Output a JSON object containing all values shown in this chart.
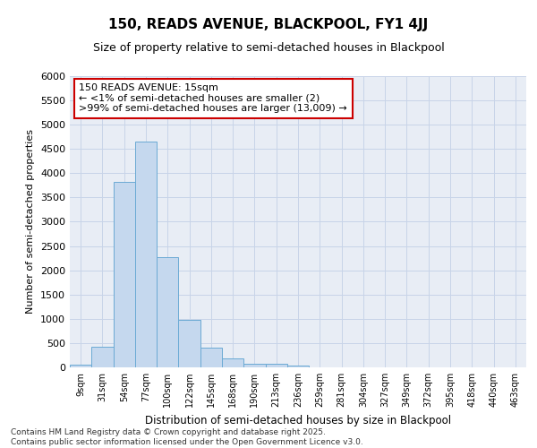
{
  "title1": "150, READS AVENUE, BLACKPOOL, FY1 4JJ",
  "title2": "Size of property relative to semi-detached houses in Blackpool",
  "xlabel": "Distribution of semi-detached houses by size in Blackpool",
  "ylabel": "Number of semi-detached properties",
  "categories": [
    "9sqm",
    "31sqm",
    "54sqm",
    "77sqm",
    "100sqm",
    "122sqm",
    "145sqm",
    "168sqm",
    "190sqm",
    "213sqm",
    "236sqm",
    "259sqm",
    "281sqm",
    "304sqm",
    "327sqm",
    "349sqm",
    "372sqm",
    "395sqm",
    "418sqm",
    "440sqm",
    "463sqm"
  ],
  "values": [
    50,
    430,
    3820,
    4650,
    2280,
    980,
    400,
    190,
    65,
    65,
    35,
    0,
    0,
    0,
    0,
    0,
    0,
    0,
    0,
    0,
    0
  ],
  "bar_color": "#c5d8ee",
  "bar_edge_color": "#6baad4",
  "annotation_title": "150 READS AVENUE: 15sqm",
  "annotation_line1": "← <1% of semi-detached houses are smaller (2)",
  "annotation_line2": ">99% of semi-detached houses are larger (13,009) →",
  "annotation_box_color": "#ffffff",
  "annotation_box_edge": "#cc0000",
  "grid_color": "#c8d4e8",
  "bg_color": "#e8edf5",
  "ylim": [
    0,
    6000
  ],
  "yticks": [
    0,
    500,
    1000,
    1500,
    2000,
    2500,
    3000,
    3500,
    4000,
    4500,
    5000,
    5500,
    6000
  ],
  "footer1": "Contains HM Land Registry data © Crown copyright and database right 2025.",
  "footer2": "Contains public sector information licensed under the Open Government Licence v3.0."
}
